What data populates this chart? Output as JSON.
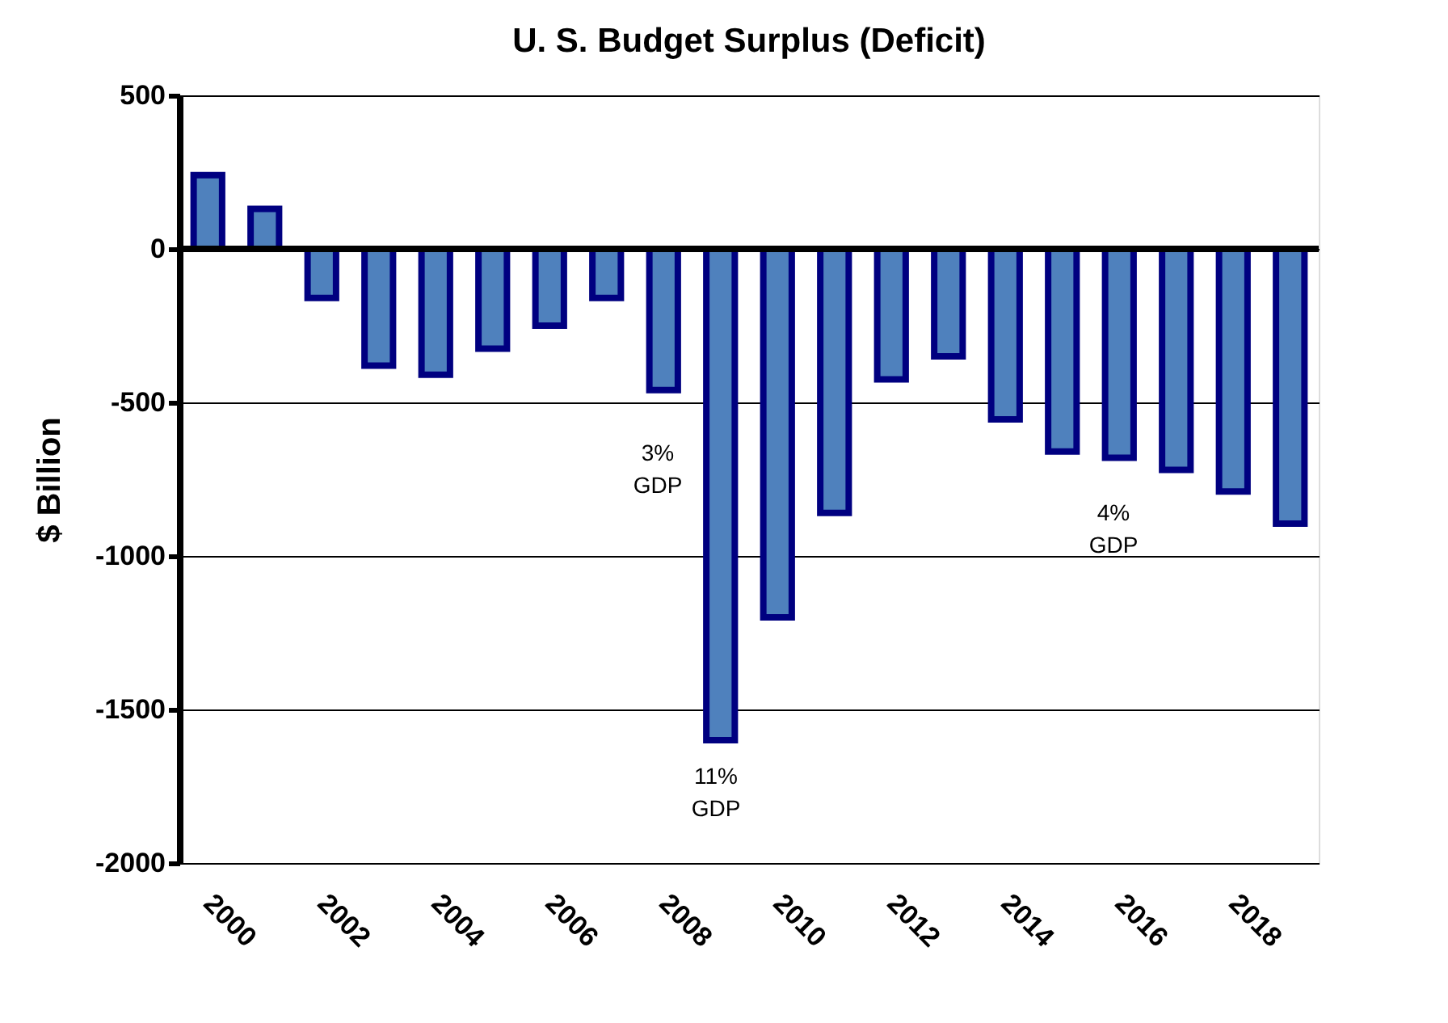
{
  "chart_data": {
    "type": "bar",
    "title": "U. S. Budget Surplus (Deficit)",
    "ylabel": "$ Billion",
    "categories": [
      "2000",
      null,
      "2002",
      null,
      "2004",
      null,
      "2006",
      null,
      "2008",
      null,
      "2010",
      null,
      "2012",
      null,
      "2014",
      null,
      "2016",
      null,
      "2018",
      null
    ],
    "values": [
      240,
      130,
      -160,
      -380,
      -410,
      -325,
      -250,
      -160,
      -460,
      -1600,
      -1200,
      -860,
      -425,
      -350,
      -555,
      -660,
      -680,
      -720,
      -790,
      -895
    ],
    "color": "#4f81bd",
    "ylim": [
      -2000,
      500
    ],
    "yticks": [
      500,
      0,
      -500,
      -1000,
      -1500,
      -2000
    ],
    "grid": "y",
    "ref_lines": [
      {
        "axis": "y",
        "value": 0,
        "color": "#000000"
      }
    ],
    "annotations": [
      "3% GDP",
      "11% GDP",
      "4% GDP"
    ]
  }
}
